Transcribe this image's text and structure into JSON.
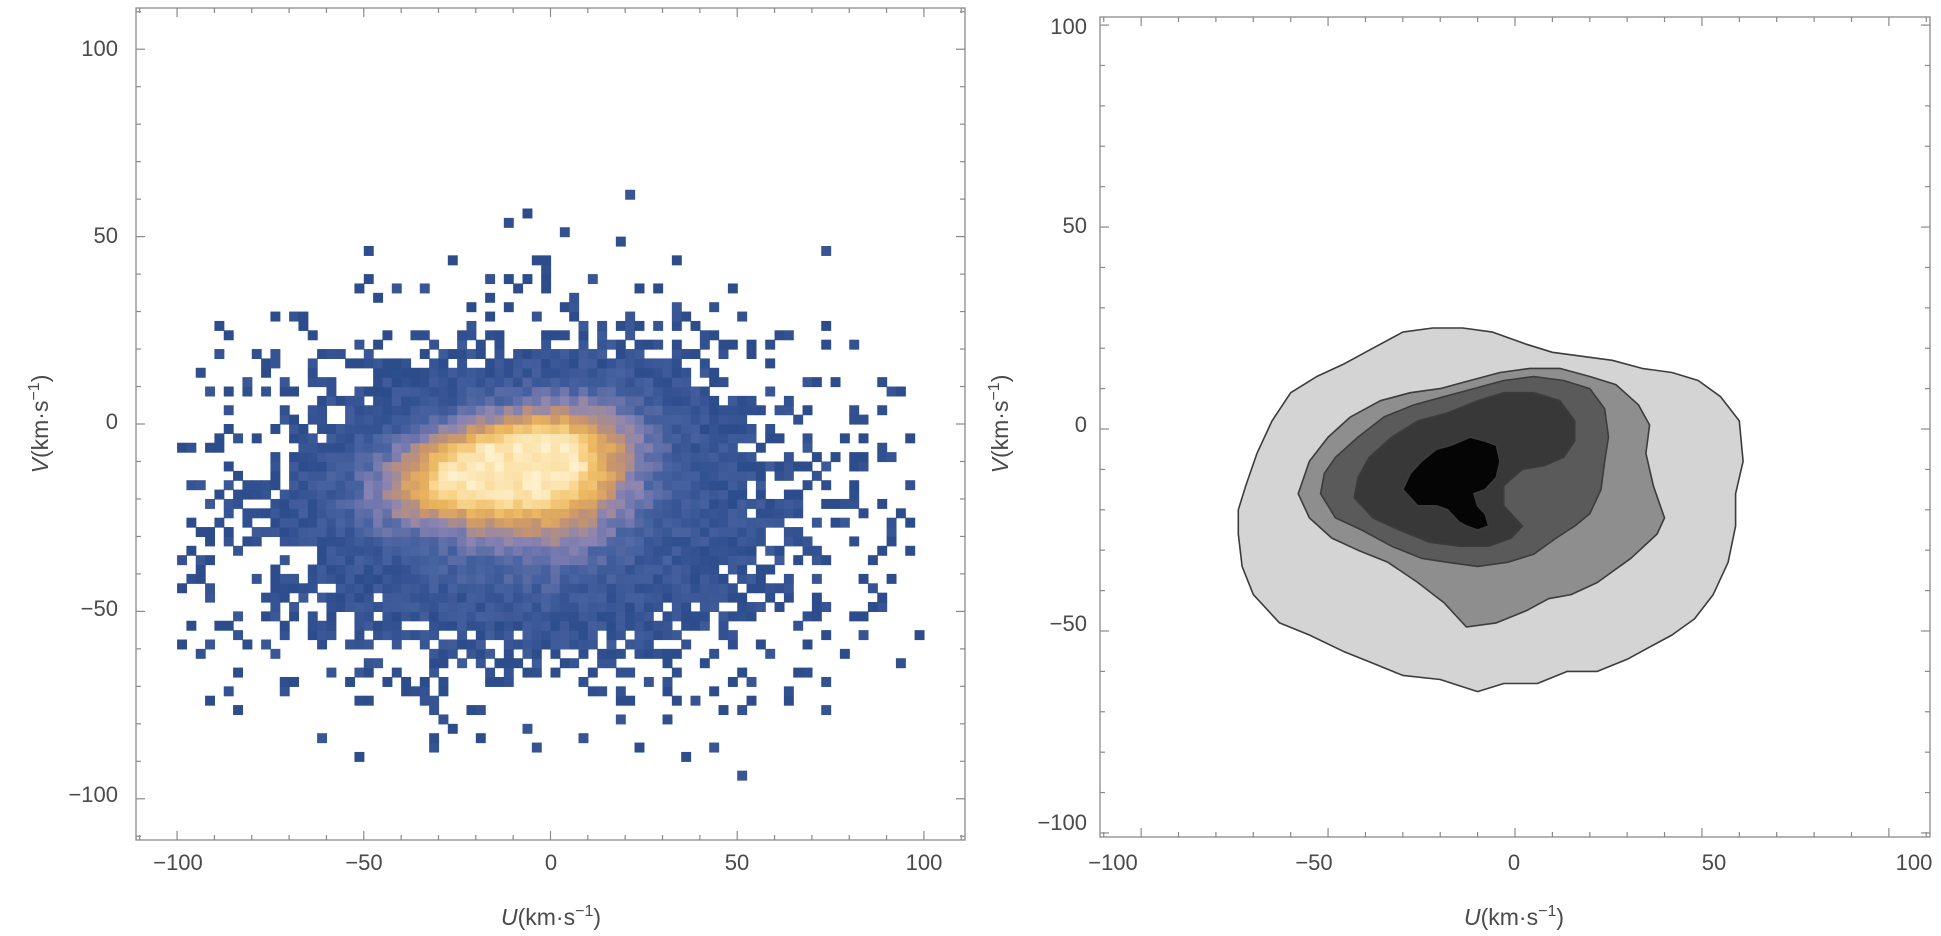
{
  "figure": {
    "panels": [
      {
        "id": "left",
        "type": "heatmap",
        "x_ticks": [
          -100,
          -50,
          0,
          50,
          100
        ],
        "y_ticks": [
          -100,
          -50,
          0,
          50,
          100
        ],
        "x_tick_labels": [
          "−100",
          "−50",
          "0",
          "50",
          "100"
        ],
        "y_tick_labels": [
          "−100",
          "−50",
          "0",
          "50",
          "100"
        ],
        "xlabel_symbol": "U",
        "xlabel_unit": "(km·s",
        "xlabel_exp": "−1",
        "xlabel_close": ")",
        "ylabel_symbol": "V",
        "ylabel_unit": "(km·s",
        "ylabel_exp": "−1",
        "ylabel_close": ")"
      },
      {
        "id": "right",
        "type": "contour",
        "x_ticks": [
          -100,
          -50,
          0,
          50,
          100
        ],
        "y_ticks": [
          -100,
          -50,
          0,
          50,
          100
        ],
        "x_tick_labels": [
          "−100",
          "−50",
          "0",
          "50",
          "100"
        ],
        "y_tick_labels": [
          "−100",
          "−50",
          "0",
          "50",
          "100"
        ],
        "xlabel_symbol": "U",
        "xlabel_unit": "(km·s",
        "xlabel_exp": "−1",
        "xlabel_close": ")",
        "ylabel_symbol": "V",
        "ylabel_unit": "(km·s",
        "ylabel_exp": "−1",
        "ylabel_close": ")"
      }
    ]
  },
  "chart_data": [
    {
      "type": "heatmap",
      "xlim": [
        -111,
        111
      ],
      "ylim": [
        -111,
        111
      ],
      "bin_width": 2.5,
      "distribution": {
        "components": [
          {
            "center_u": -17,
            "center_v": -12,
            "sigma_u": 18,
            "sigma_v": 9,
            "rho": 0.35,
            "weight": 1.0
          },
          {
            "center_u": 3,
            "center_v": -14,
            "sigma_u": 14,
            "sigma_v": 13,
            "rho": 0.2,
            "weight": 0.55
          },
          {
            "center_u": -5,
            "center_v": -22,
            "sigma_u": 40,
            "sigma_v": 24,
            "rho": 0.0,
            "weight": 0.18
          }
        ],
        "extent_u": [
          -100,
          98
        ],
        "extent_v": [
          -100,
          76
        ]
      },
      "colorscale": [
        "#2c4c8c",
        "#4a64a2",
        "#8a84b4",
        "#c8946c",
        "#eab45c",
        "#f8d48a",
        "#fff0cc"
      ],
      "grid": false
    },
    {
      "type": "contour",
      "xlim": [
        -111,
        111
      ],
      "ylim": [
        -101,
        102
      ],
      "levels": [
        {
          "fill": "#d4d4d4",
          "points": [
            [
              -74,
              -26
            ],
            [
              -73,
              -34
            ],
            [
              -70,
              -41
            ],
            [
              -63,
              -48
            ],
            [
              -55,
              -51
            ],
            [
              -46,
              -55
            ],
            [
              -38,
              -58
            ],
            [
              -30,
              -61
            ],
            [
              -20,
              -62
            ],
            [
              -10,
              -65
            ],
            [
              -3,
              -63
            ],
            [
              6,
              -63
            ],
            [
              14,
              -60
            ],
            [
              22,
              -60
            ],
            [
              30,
              -57
            ],
            [
              36,
              -54
            ],
            [
              42,
              -51
            ],
            [
              48,
              -47
            ],
            [
              53,
              -41
            ],
            [
              57,
              -33
            ],
            [
              59,
              -24
            ],
            [
              59,
              -16
            ],
            [
              61,
              -8
            ],
            [
              60,
              2
            ],
            [
              55,
              8
            ],
            [
              49,
              12
            ],
            [
              42,
              14
            ],
            [
              34,
              15
            ],
            [
              26,
              17
            ],
            [
              18,
              18
            ],
            [
              10,
              19
            ],
            [
              3,
              21
            ],
            [
              -6,
              24
            ],
            [
              -14,
              25
            ],
            [
              -22,
              25
            ],
            [
              -30,
              24
            ],
            [
              -38,
              20
            ],
            [
              -46,
              16
            ],
            [
              -53,
              13
            ],
            [
              -60,
              9
            ],
            [
              -65,
              2
            ],
            [
              -69,
              -6
            ],
            [
              -72,
              -14
            ],
            [
              -74,
              -20
            ]
          ]
        },
        {
          "fill": "#8e8e8e",
          "points": [
            [
              -58,
              -16
            ],
            [
              -55,
              -22
            ],
            [
              -49,
              -27
            ],
            [
              -42,
              -30
            ],
            [
              -34,
              -33
            ],
            [
              -26,
              -38
            ],
            [
              -19,
              -43
            ],
            [
              -13,
              -49
            ],
            [
              -5,
              -48
            ],
            [
              3,
              -45
            ],
            [
              9,
              -42
            ],
            [
              15,
              -41
            ],
            [
              22,
              -38
            ],
            [
              31,
              -32
            ],
            [
              38,
              -26
            ],
            [
              40,
              -22
            ],
            [
              37,
              -14
            ],
            [
              35,
              -6
            ],
            [
              36,
              1
            ],
            [
              33,
              6
            ],
            [
              27,
              11
            ],
            [
              20,
              13
            ],
            [
              12,
              15
            ],
            [
              4,
              15
            ],
            [
              -4,
              14
            ],
            [
              -12,
              12
            ],
            [
              -20,
              10
            ],
            [
              -28,
              9
            ],
            [
              -36,
              7
            ],
            [
              -44,
              3
            ],
            [
              -50,
              -2
            ],
            [
              -55,
              -8
            ]
          ]
        },
        {
          "fill": "#5a5a5a",
          "points": [
            [
              -52,
              -16
            ],
            [
              -48,
              -22
            ],
            [
              -41,
              -25
            ],
            [
              -33,
              -29
            ],
            [
              -25,
              -32
            ],
            [
              -18,
              -33
            ],
            [
              -10,
              -34
            ],
            [
              -2,
              -33
            ],
            [
              5,
              -31
            ],
            [
              11,
              -27
            ],
            [
              16,
              -24
            ],
            [
              20,
              -21
            ],
            [
              23,
              -15
            ],
            [
              24,
              -8
            ],
            [
              25,
              -2
            ],
            [
              24,
              5
            ],
            [
              20,
              10
            ],
            [
              13,
              12
            ],
            [
              5,
              13
            ],
            [
              -3,
              12
            ],
            [
              -11,
              10
            ],
            [
              -19,
              8
            ],
            [
              -27,
              6
            ],
            [
              -35,
              3
            ],
            [
              -42,
              -2
            ],
            [
              -48,
              -7
            ],
            [
              -51,
              -11
            ]
          ]
        },
        {
          "fill": "#383838",
          "points": [
            [
              -43,
              -17
            ],
            [
              -38,
              -22
            ],
            [
              -31,
              -25
            ],
            [
              -23,
              -28
            ],
            [
              -15,
              -29
            ],
            [
              -7,
              -29
            ],
            [
              -1,
              -27
            ],
            [
              2,
              -24
            ],
            [
              -3,
              -19
            ],
            [
              -3,
              -14
            ],
            [
              2,
              -10
            ],
            [
              8,
              -9
            ],
            [
              13,
              -7
            ],
            [
              16,
              -3
            ],
            [
              16,
              2
            ],
            [
              12,
              7
            ],
            [
              5,
              9
            ],
            [
              -3,
              9
            ],
            [
              -10,
              7
            ],
            [
              -18,
              4
            ],
            [
              -26,
              2
            ],
            [
              -33,
              -2
            ],
            [
              -39,
              -7
            ],
            [
              -42,
              -12
            ]
          ]
        },
        {
          "fill": "#050505",
          "points": [
            [
              -30,
              -15
            ],
            [
              -26,
              -19
            ],
            [
              -21,
              -19
            ],
            [
              -18,
              -20
            ],
            [
              -15,
              -23
            ],
            [
              -13,
              -24
            ],
            [
              -10,
              -25
            ],
            [
              -7,
              -24
            ],
            [
              -8,
              -21
            ],
            [
              -10,
              -19
            ],
            [
              -11,
              -16
            ],
            [
              -8,
              -15
            ],
            [
              -5,
              -12
            ],
            [
              -4,
              -8
            ],
            [
              -5,
              -4
            ],
            [
              -8,
              -3
            ],
            [
              -12,
              -2
            ],
            [
              -17,
              -4
            ],
            [
              -21,
              -5
            ],
            [
              -25,
              -8
            ],
            [
              -28,
              -11
            ]
          ]
        }
      ],
      "grid": false
    }
  ]
}
